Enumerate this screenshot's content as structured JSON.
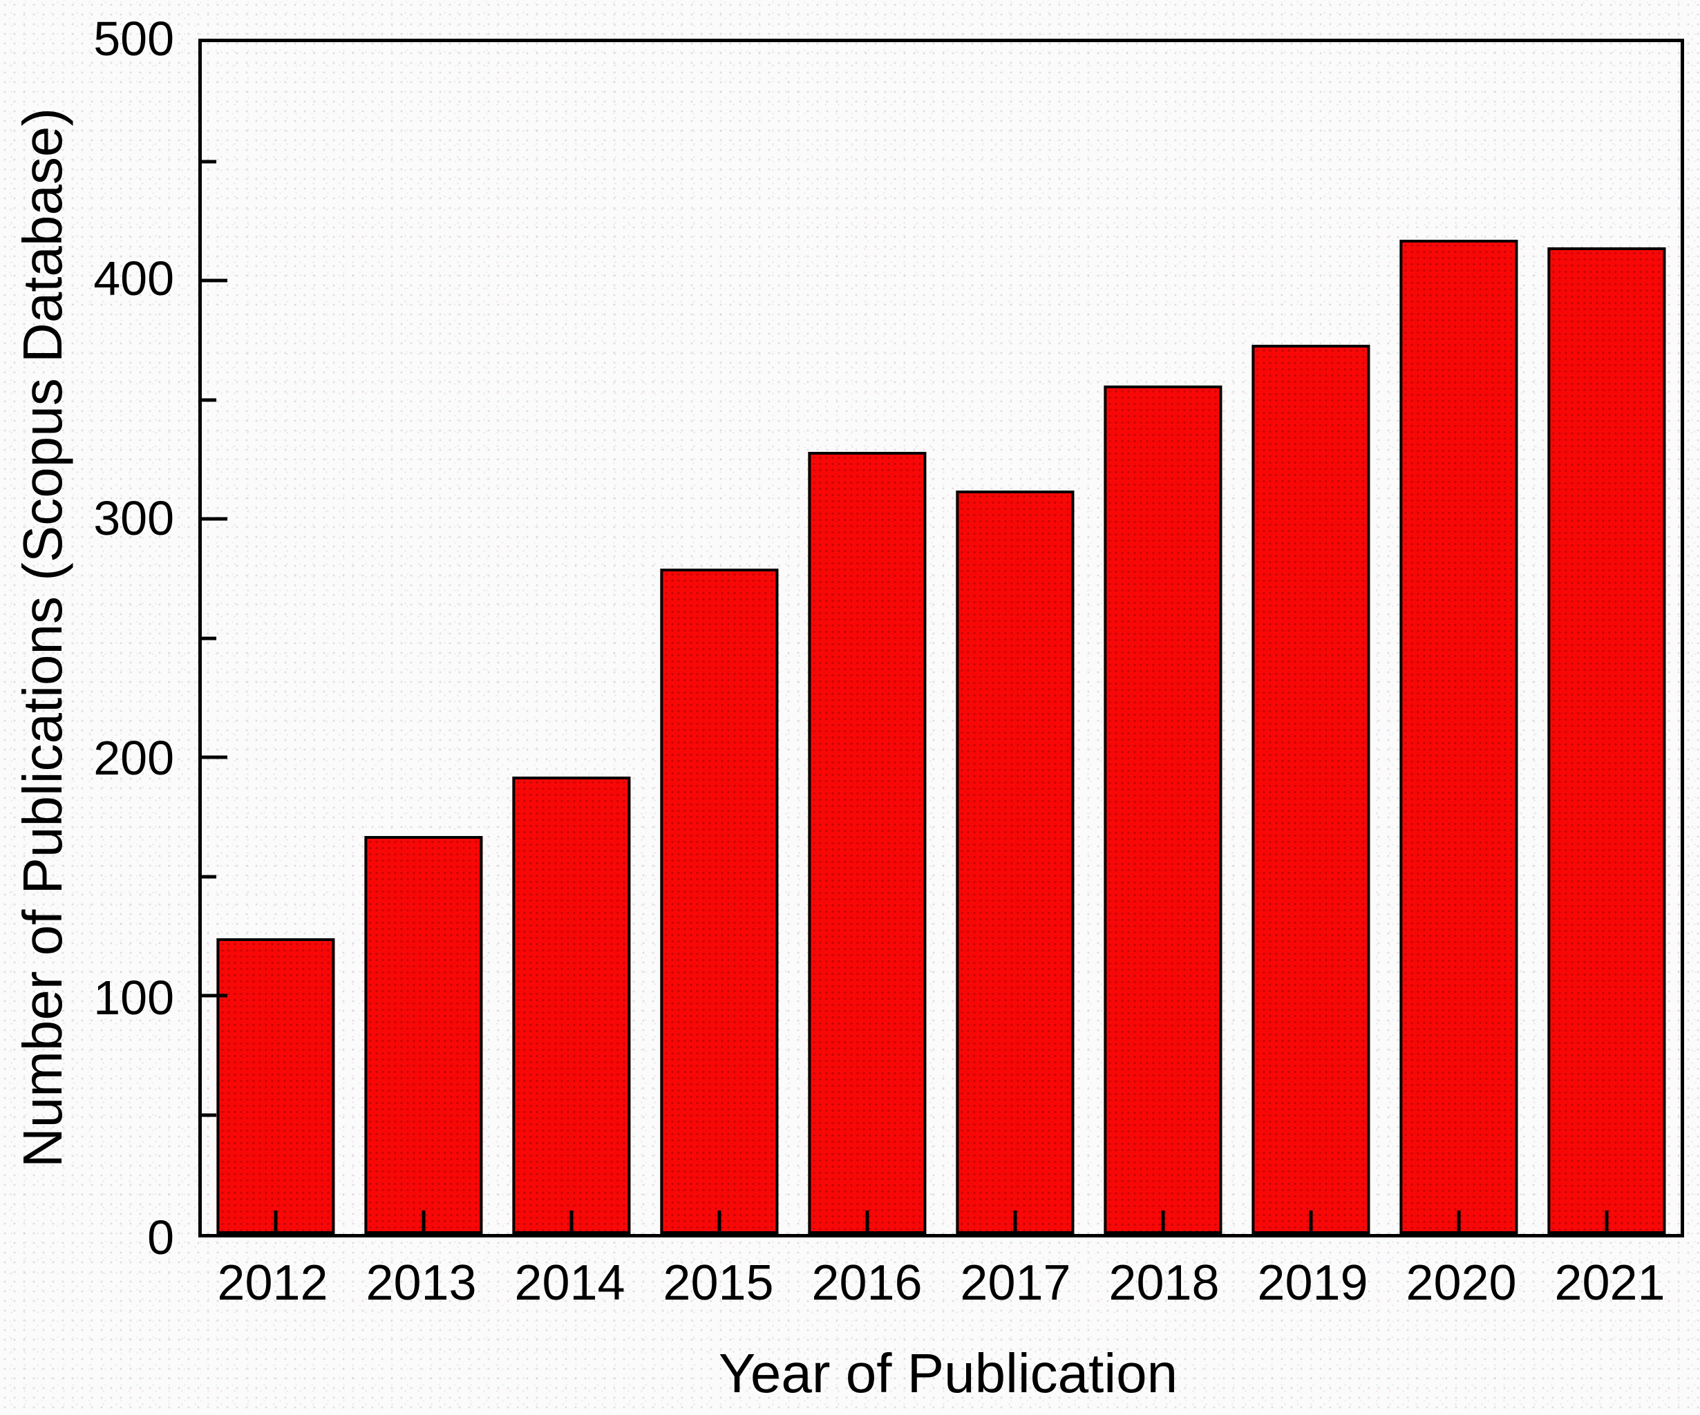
{
  "chart_data": {
    "type": "bar",
    "title": "",
    "xlabel": "Year of Publication",
    "ylabel": "Number of Publications (Scopus Database)",
    "categories": [
      "2012",
      "2013",
      "2014",
      "2015",
      "2016",
      "2017",
      "2018",
      "2019",
      "2020",
      "2021"
    ],
    "values": [
      124,
      167,
      192,
      279,
      328,
      312,
      356,
      373,
      417,
      414
    ],
    "ylim": [
      0,
      500
    ],
    "y_major_ticks": [
      0,
      100,
      200,
      300,
      400,
      500
    ],
    "y_minor_tick_step": 50,
    "grid": false,
    "legend": "none",
    "bar_color": "#f80707",
    "bar_edge_color": "#000000",
    "frame_color": "#000000",
    "background_color": "#fcfbfb",
    "tick_direction": "in"
  }
}
